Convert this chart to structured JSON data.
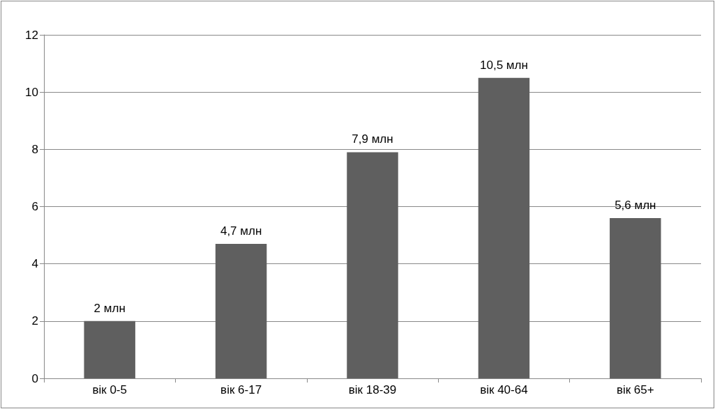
{
  "chart_data": {
    "type": "bar",
    "categories": [
      "вік 0-5",
      "вік 6-17",
      "вік 18-39",
      "вік 40-64",
      "вік 65+"
    ],
    "values": [
      2,
      4.7,
      7.9,
      10.5,
      5.6
    ],
    "color": "#5f5f5f",
    "value_labels": [
      "2 млн",
      "4,7 млн",
      "7,9 млн",
      "10,5 млн",
      "5,6 млн"
    ],
    "ylim": [
      0,
      12
    ],
    "yticks": [
      0,
      2,
      4,
      6,
      8,
      10,
      12
    ],
    "grid": "y"
  }
}
